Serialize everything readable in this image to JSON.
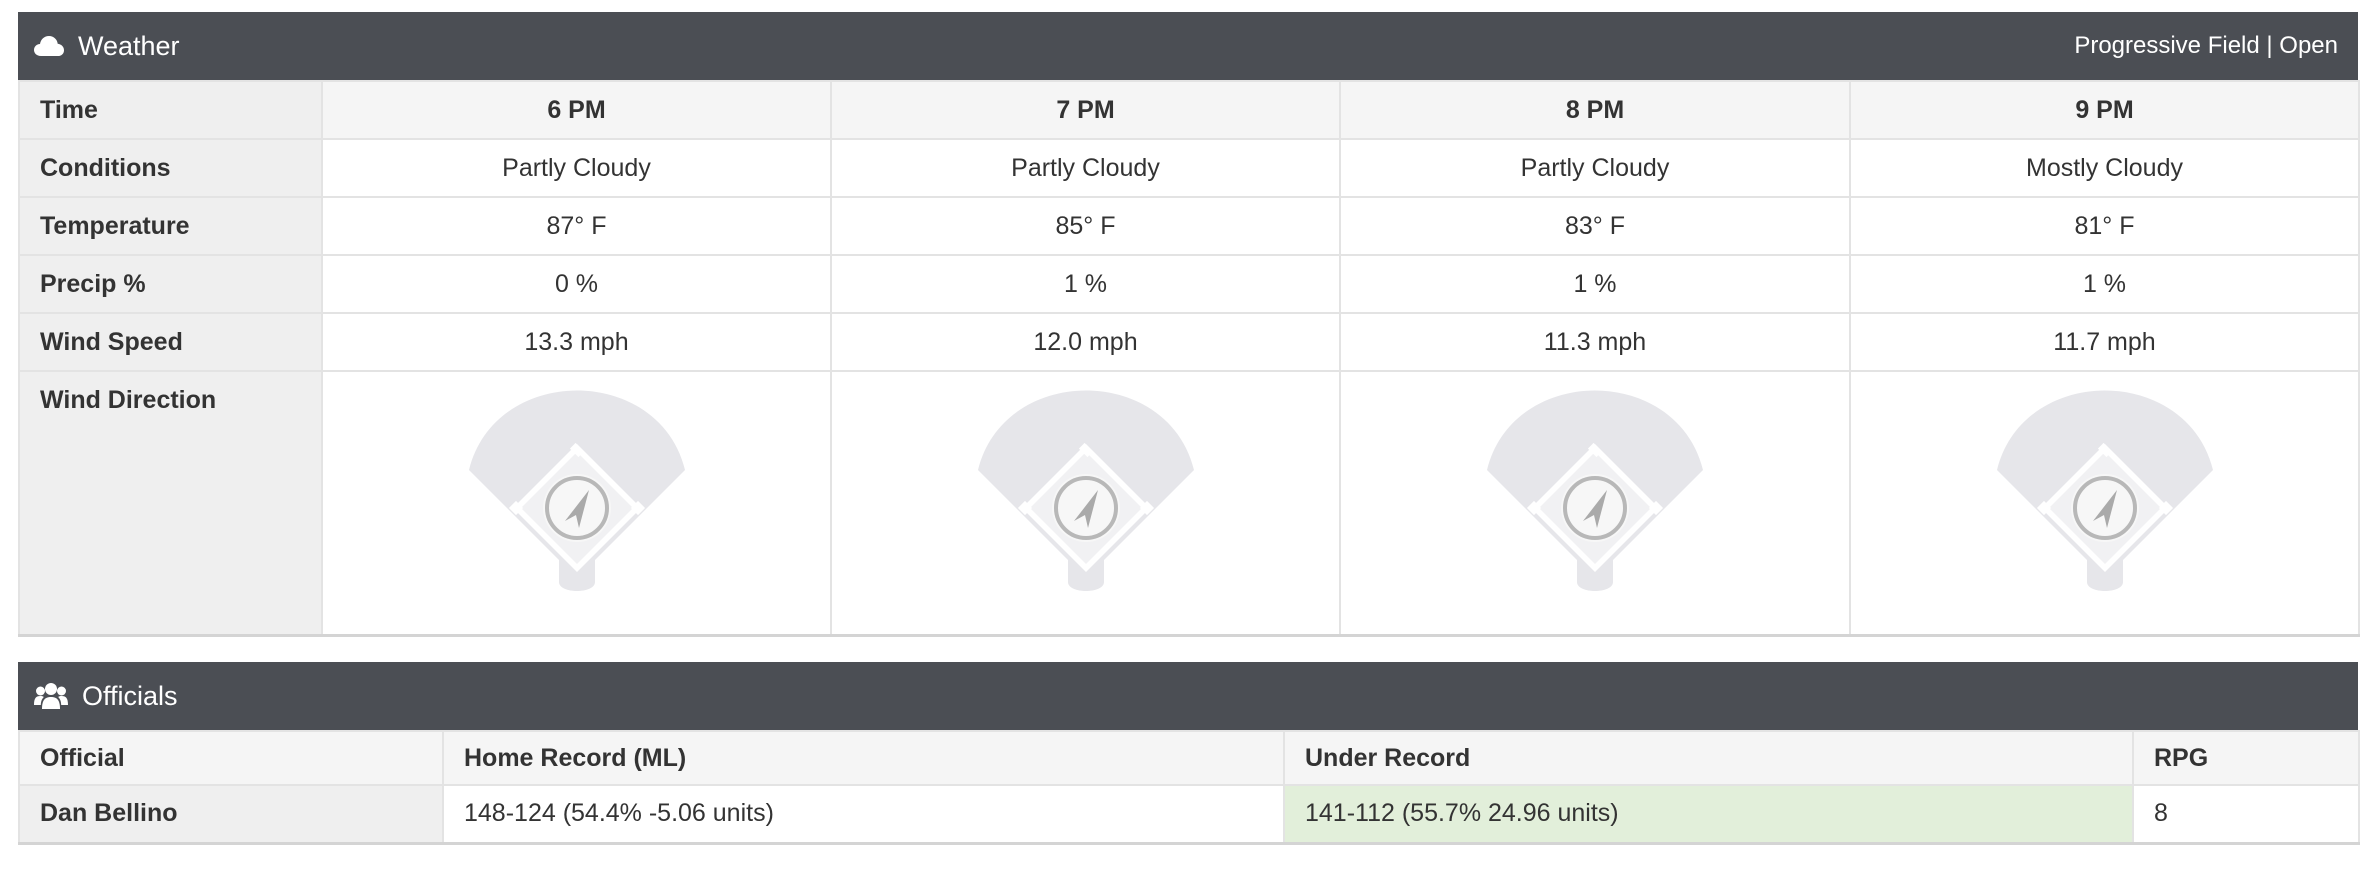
{
  "weather": {
    "title": "Weather",
    "icon": "cloud-icon",
    "venue": "Progressive Field | Open",
    "row_labels": {
      "time": "Time",
      "conditions": "Conditions",
      "temperature": "Temperature",
      "precip": "Precip %",
      "wind_speed": "Wind Speed",
      "wind_direction": "Wind Direction"
    },
    "hours": [
      {
        "time": "6 PM",
        "conditions": "Partly Cloudy",
        "temperature": "87° F",
        "precip": "0 %",
        "wind_speed": "13.3 mph"
      },
      {
        "time": "7 PM",
        "conditions": "Partly Cloudy",
        "temperature": "85° F",
        "precip": "1 %",
        "wind_speed": "12.0 mph"
      },
      {
        "time": "8 PM",
        "conditions": "Partly Cloudy",
        "temperature": "83° F",
        "precip": "1 %",
        "wind_speed": "11.3 mph"
      },
      {
        "time": "9 PM",
        "conditions": "Mostly Cloudy",
        "temperature": "81° F",
        "precip": "1 %",
        "wind_speed": "11.7 mph"
      }
    ],
    "wind_direction_icon": "baseball-field-icon"
  },
  "officials": {
    "title": "Officials",
    "icon": "users-icon",
    "columns": [
      "Official",
      "Home Record (ML)",
      "Under Record",
      "RPG"
    ],
    "rows": [
      {
        "official": "Dan Bellino",
        "home_record": "148-124 (54.4% -5.06 units)",
        "under_record": "141-112 (55.7% 24.96 units)",
        "rpg": "8"
      }
    ],
    "highlight_color": "#e2efda"
  },
  "colors": {
    "header_bg": "#4b4e54",
    "label_bg": "#efefef"
  }
}
